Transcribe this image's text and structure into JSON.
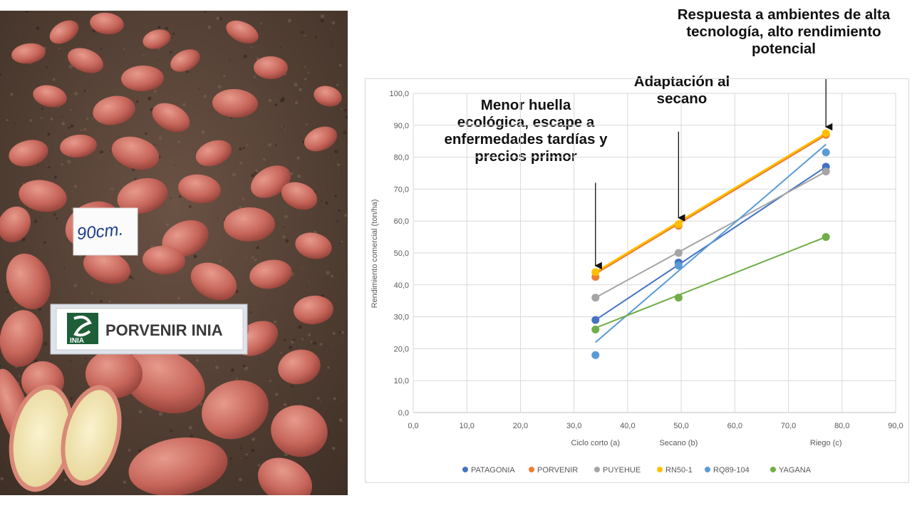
{
  "photo": {
    "handwritten_tag": "90cm.",
    "variety_tag": "PORVENIR INIA",
    "variety_logo_text": "INIA"
  },
  "annotations": [
    "Menor huella\necológica, escape a\nenfermedades tardías y\nprecios primor",
    "Adaptación al\nsecano",
    "Respuesta a ambientes de alta\ntecnología, alto rendimiento\npotencial"
  ],
  "colors": {
    "PATAGONIA": "#4472C4",
    "PORVENIR": "#ED7D31",
    "PUYEHUE": "#A5A5A5",
    "RN50-1": "#FFC000",
    "RQ89-104": "#5B9BD5",
    "YAGANA": "#70AD47"
  },
  "chart_data": {
    "type": "scatter",
    "title": "",
    "xlabel": "",
    "ylabel": "Rendimiento comercial (ton/ha)",
    "xlim": [
      0,
      90
    ],
    "ylim": [
      0,
      100
    ],
    "x_ticks": [
      "0,0",
      "10,0",
      "20,0",
      "30,0",
      "40,0",
      "50,0",
      "60,0",
      "70,0",
      "80,0",
      "90,0"
    ],
    "y_ticks": [
      "0,0",
      "10,0",
      "20,0",
      "30,0",
      "40,0",
      "50,0",
      "60,0",
      "70,0",
      "80,0",
      "90,0",
      "100,0"
    ],
    "category_labels": [
      {
        "x": 34,
        "label": "Ciclo corto (a)"
      },
      {
        "x": 49.5,
        "label": "Secano (b)"
      },
      {
        "x": 77,
        "label": "Riego (c)"
      }
    ],
    "x": [
      34,
      49.5,
      77
    ],
    "series": [
      {
        "name": "PATAGONIA",
        "values": [
          29.0,
          47.0,
          77.0
        ],
        "trend": [
          [
            34,
            29.0
          ],
          [
            77,
            77.0
          ]
        ]
      },
      {
        "name": "PORVENIR",
        "values": [
          42.5,
          58.5,
          87.0
        ],
        "trend": [
          [
            34,
            43.5
          ],
          [
            77,
            87.0
          ]
        ]
      },
      {
        "name": "PUYEHUE",
        "values": [
          36.0,
          50.0,
          75.5
        ],
        "trend": [
          [
            34,
            36.0
          ],
          [
            77,
            75.5
          ]
        ]
      },
      {
        "name": "RN50-1",
        "values": [
          44.0,
          59.0,
          87.5
        ],
        "trend": [
          [
            34,
            44.0
          ],
          [
            77,
            87.5
          ]
        ]
      },
      {
        "name": "RQ89-104",
        "values": [
          18.0,
          46.0,
          81.5
        ],
        "trend": [
          [
            34,
            22.0
          ],
          [
            77,
            84.0
          ]
        ]
      },
      {
        "name": "YAGANA",
        "values": [
          26.0,
          36.0,
          55.0
        ],
        "trend": [
          [
            34,
            26.5
          ],
          [
            77,
            55.0
          ]
        ]
      }
    ],
    "grid": true,
    "legend": "bottom"
  }
}
